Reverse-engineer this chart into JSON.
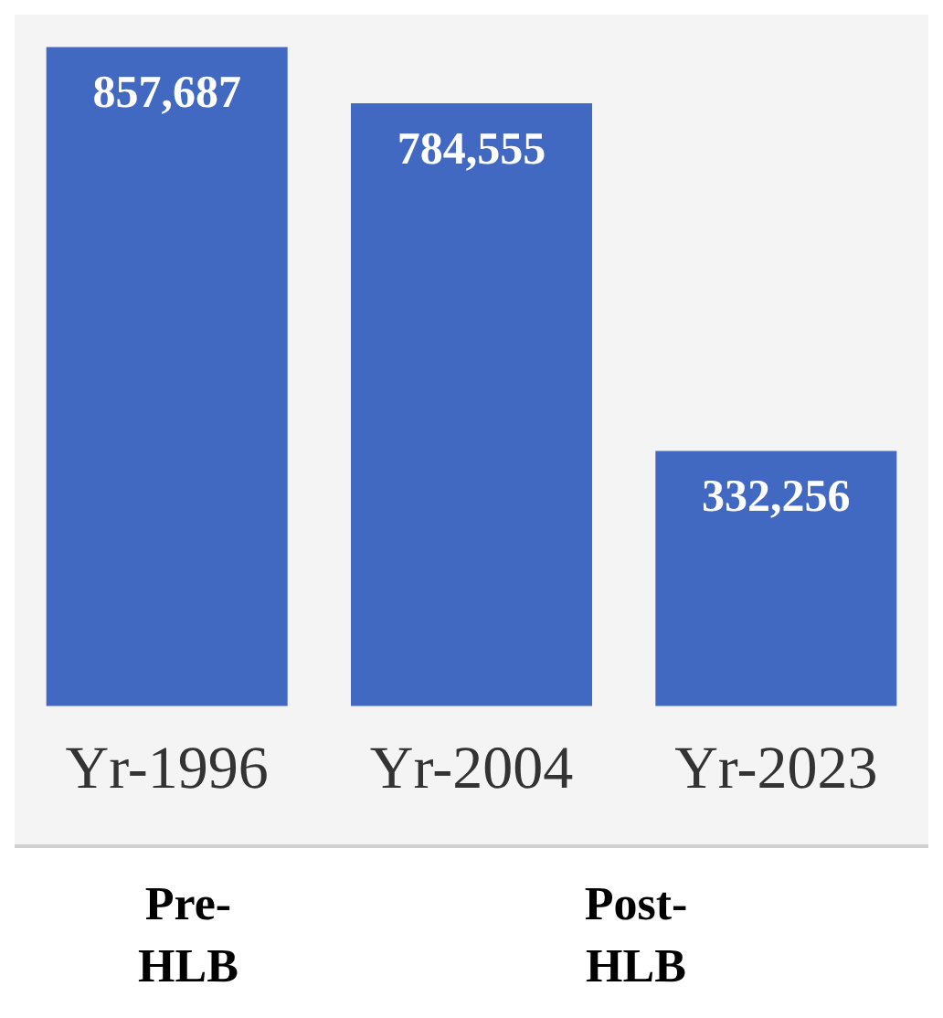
{
  "chart_data": {
    "type": "bar",
    "categories": [
      "Yr-1996",
      "Yr-2004",
      "Yr-2023"
    ],
    "values": [
      857687,
      784555,
      332256
    ],
    "value_labels": [
      "857,687",
      "784,555",
      "332,256"
    ],
    "color": "#4169c2",
    "grid": false,
    "tick_labels": "x",
    "annotations": [
      "Pre-HLB",
      "Post-HLB"
    ]
  }
}
